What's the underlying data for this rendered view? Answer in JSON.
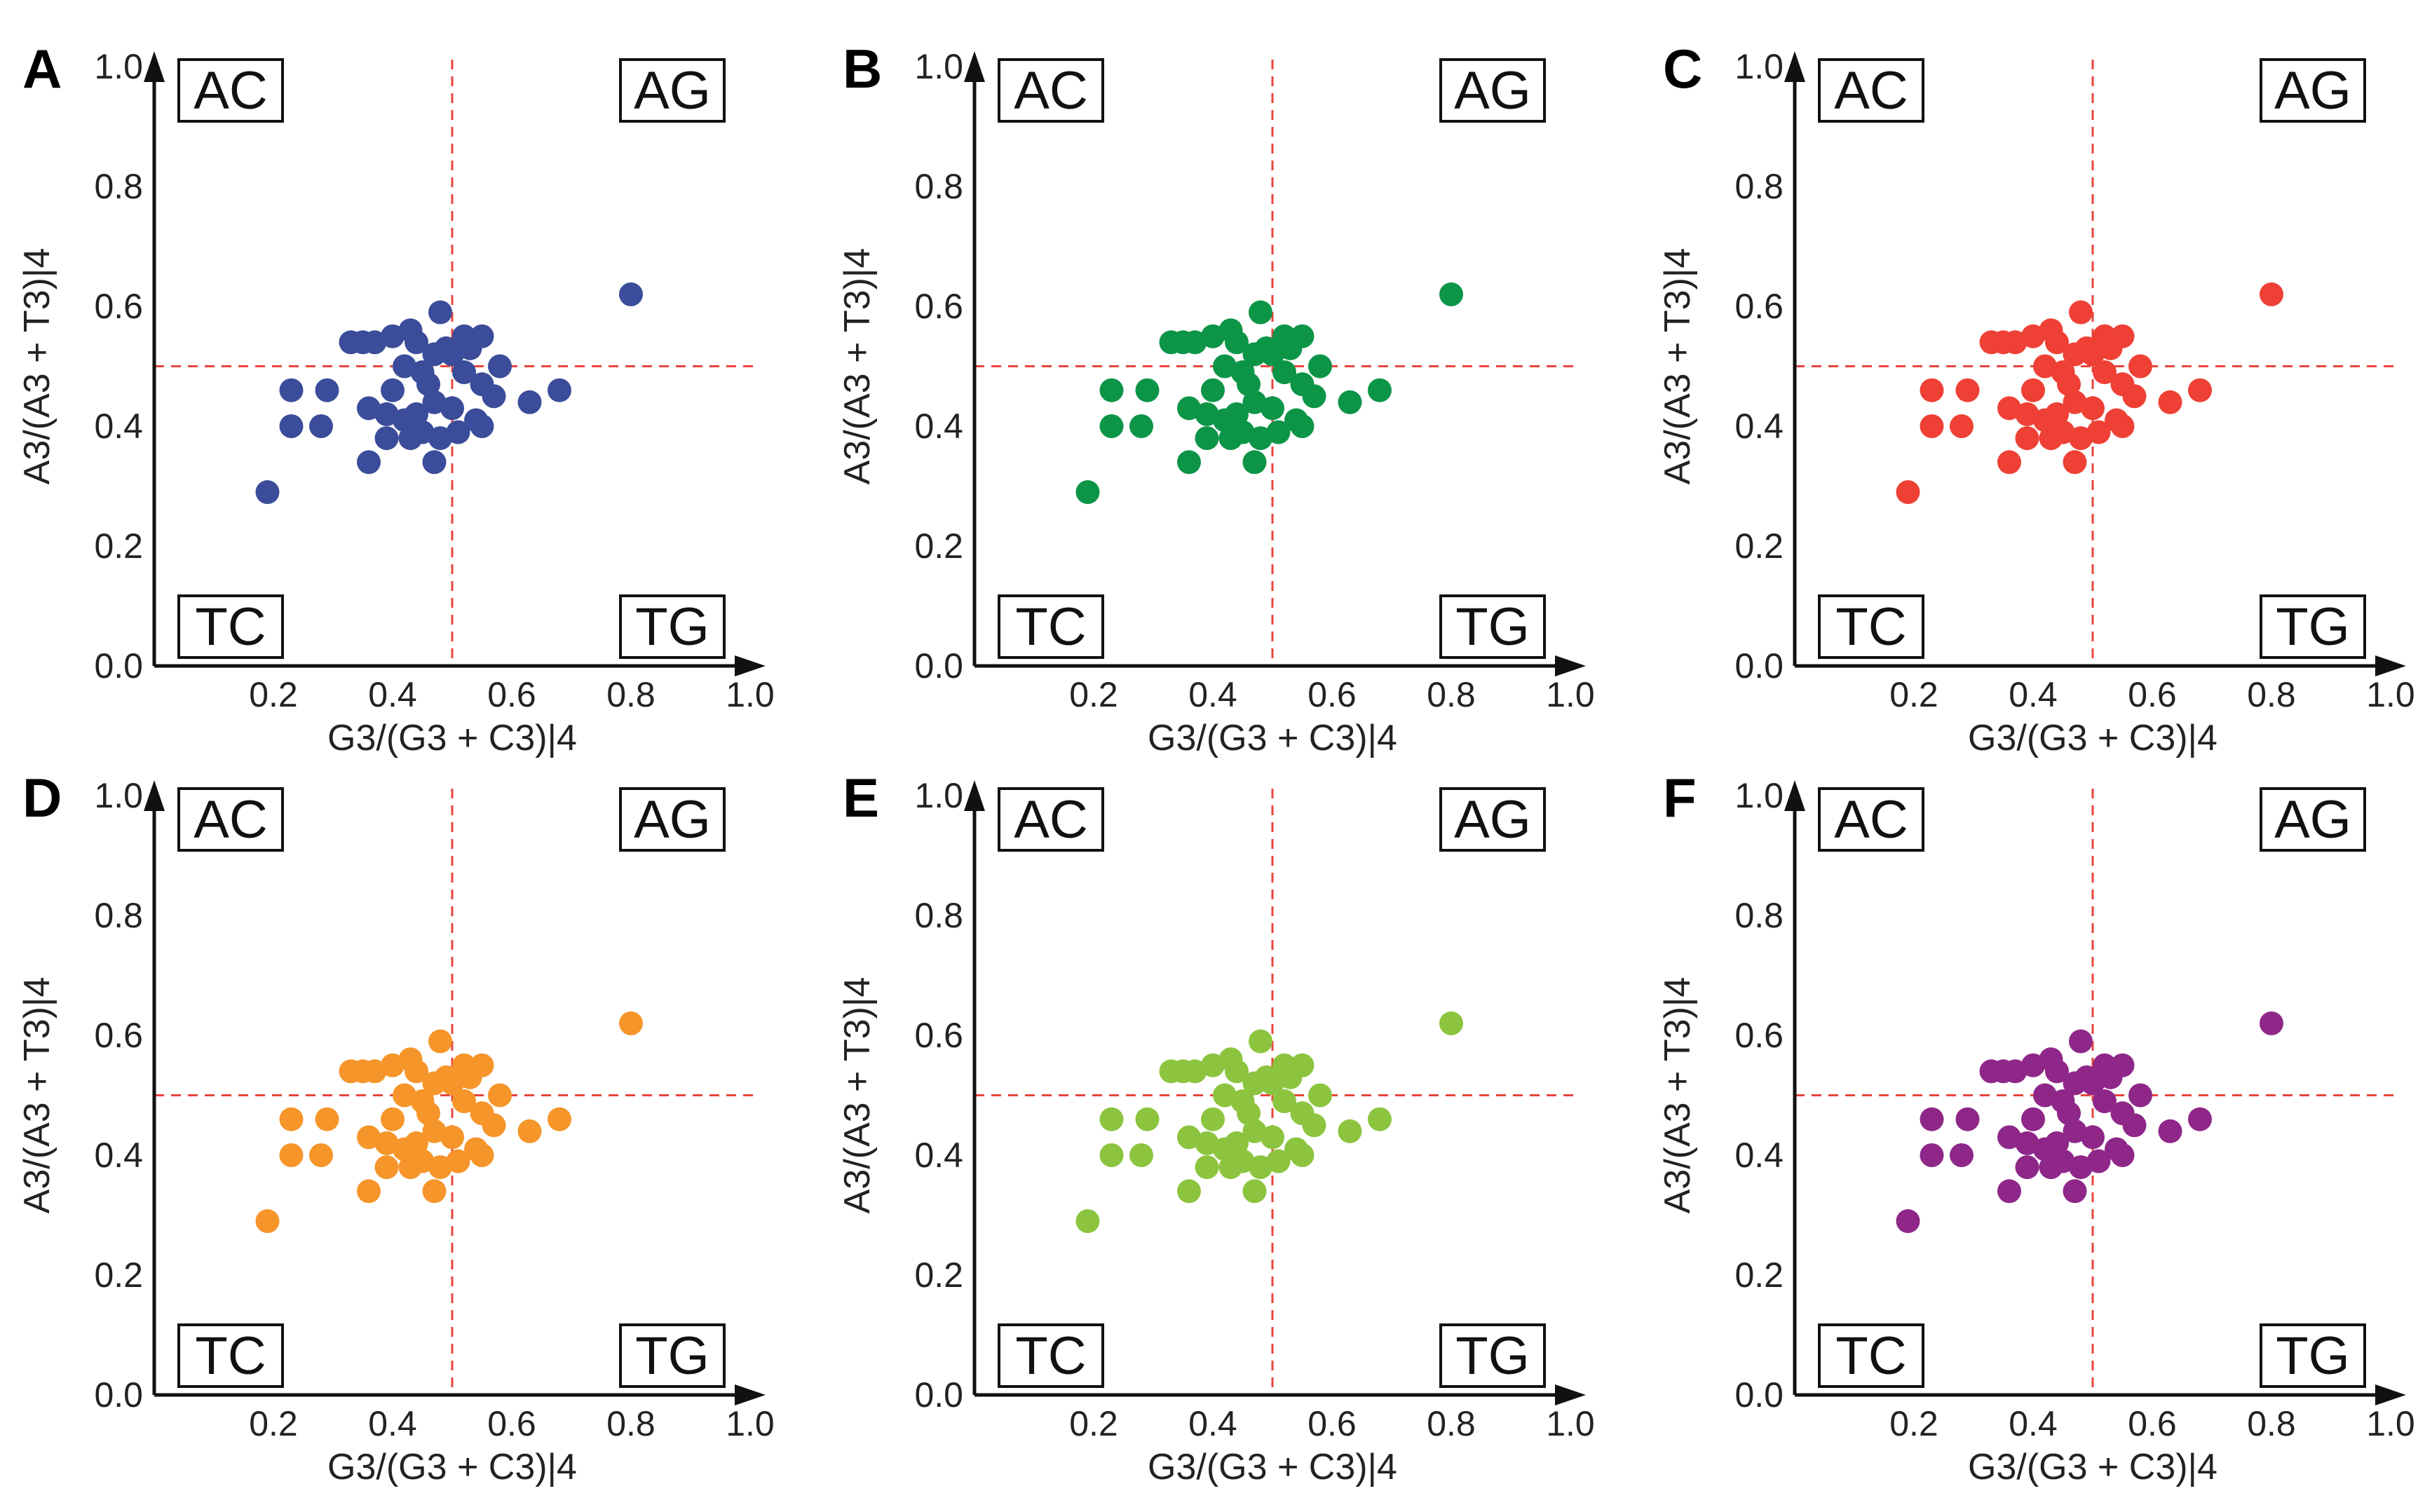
{
  "chart_data": [
    {
      "panel": "A",
      "type": "scatter",
      "color": "#3b4c9a"
    },
    {
      "panel": "B",
      "type": "scatter",
      "color": "#0c9447"
    },
    {
      "panel": "C",
      "type": "scatter",
      "color": "#ee4035"
    },
    {
      "panel": "D",
      "type": "scatter",
      "color": "#f5952a"
    },
    {
      "panel": "E",
      "type": "scatter",
      "color": "#8cc43f"
    },
    {
      "panel": "F",
      "type": "scatter",
      "color": "#8e2788"
    }
  ],
  "shared": {
    "xlabel": "G3/(G3 + C3)|4",
    "ylabel": "A3/(A3 + T3)|4",
    "xlim": [
      0.0,
      1.0
    ],
    "ylim": [
      0.0,
      1.0
    ],
    "x_ticks": [
      "0.2",
      "0.4",
      "0.6",
      "0.8",
      "1.0"
    ],
    "y_ticks": [
      "0.0",
      "0.2",
      "0.4",
      "0.6",
      "0.8",
      "1.0"
    ],
    "x_tick_values": [
      0.2,
      0.4,
      0.6,
      0.8,
      1.0
    ],
    "y_tick_values": [
      0.0,
      0.2,
      0.4,
      0.6,
      0.8,
      1.0
    ],
    "reference_x": 0.5,
    "reference_y": 0.5,
    "quadrants": {
      "top_left": "AC",
      "top_right": "AG",
      "bottom_left": "TC",
      "bottom_right": "TG"
    },
    "points": [
      {
        "x": 0.19,
        "y": 0.29
      },
      {
        "x": 0.23,
        "y": 0.46
      },
      {
        "x": 0.23,
        "y": 0.4
      },
      {
        "x": 0.29,
        "y": 0.46
      },
      {
        "x": 0.28,
        "y": 0.4
      },
      {
        "x": 0.33,
        "y": 0.54
      },
      {
        "x": 0.35,
        "y": 0.54
      },
      {
        "x": 0.37,
        "y": 0.54
      },
      {
        "x": 0.4,
        "y": 0.55
      },
      {
        "x": 0.43,
        "y": 0.56
      },
      {
        "x": 0.44,
        "y": 0.54
      },
      {
        "x": 0.48,
        "y": 0.59
      },
      {
        "x": 0.42,
        "y": 0.5
      },
      {
        "x": 0.47,
        "y": 0.52
      },
      {
        "x": 0.49,
        "y": 0.53
      },
      {
        "x": 0.46,
        "y": 0.47
      },
      {
        "x": 0.4,
        "y": 0.46
      },
      {
        "x": 0.36,
        "y": 0.43
      },
      {
        "x": 0.39,
        "y": 0.42
      },
      {
        "x": 0.42,
        "y": 0.41
      },
      {
        "x": 0.44,
        "y": 0.42
      },
      {
        "x": 0.47,
        "y": 0.44
      },
      {
        "x": 0.5,
        "y": 0.43
      },
      {
        "x": 0.52,
        "y": 0.55
      },
      {
        "x": 0.53,
        "y": 0.53
      },
      {
        "x": 0.55,
        "y": 0.55
      },
      {
        "x": 0.52,
        "y": 0.49
      },
      {
        "x": 0.55,
        "y": 0.47
      },
      {
        "x": 0.58,
        "y": 0.5
      },
      {
        "x": 0.57,
        "y": 0.45
      },
      {
        "x": 0.54,
        "y": 0.41
      },
      {
        "x": 0.51,
        "y": 0.39
      },
      {
        "x": 0.48,
        "y": 0.38
      },
      {
        "x": 0.45,
        "y": 0.39
      },
      {
        "x": 0.43,
        "y": 0.38
      },
      {
        "x": 0.39,
        "y": 0.38
      },
      {
        "x": 0.36,
        "y": 0.34
      },
      {
        "x": 0.47,
        "y": 0.34
      },
      {
        "x": 0.55,
        "y": 0.4
      },
      {
        "x": 0.63,
        "y": 0.44
      },
      {
        "x": 0.68,
        "y": 0.46
      },
      {
        "x": 0.8,
        "y": 0.62
      },
      {
        "x": 0.5,
        "y": 0.52
      },
      {
        "x": 0.45,
        "y": 0.49
      }
    ]
  }
}
